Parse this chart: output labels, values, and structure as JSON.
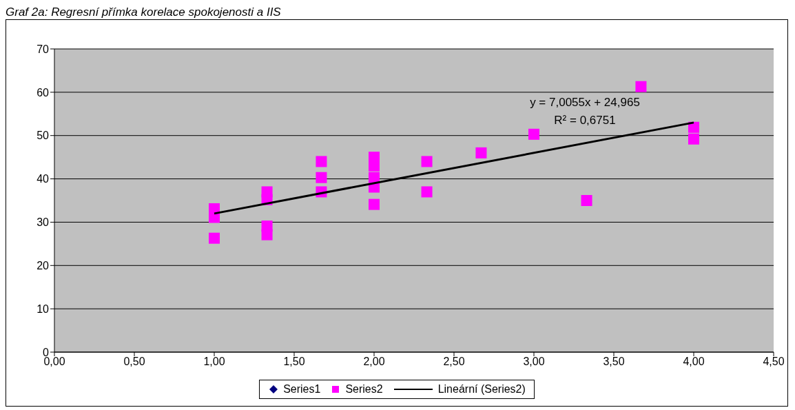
{
  "chart_data": {
    "type": "scatter",
    "title": "Graf 2a: Regresní přímka korelace spokojenosti a IIS",
    "x": [
      1,
      1,
      1,
      1.33,
      1.33,
      1.33,
      1.33,
      1.67,
      1.67,
      1.67,
      2,
      2,
      2,
      2,
      2,
      2.33,
      2.33,
      2.67,
      3,
      3.33,
      3.67,
      4,
      4
    ],
    "series": [
      {
        "name": "Series1",
        "color": "#000080",
        "marker": "diamond",
        "values": [
          null,
          null,
          null,
          null,
          null,
          null,
          null,
          null,
          null,
          null,
          null,
          null,
          null,
          null,
          null,
          null,
          null,
          null,
          null,
          null,
          null,
          null,
          null
        ]
      },
      {
        "name": "Series2",
        "color": "#ff00ff",
        "marker": "square",
        "values": [
          33.1,
          31.1,
          26.3,
          37,
          35.2,
          29.1,
          27.1,
          44,
          40.3,
          37,
          45,
          43,
          40.3,
          38.1,
          34.1,
          44,
          37,
          46,
          50.3,
          35,
          61.3,
          51.9,
          49.2
        ]
      },
      {
        "name": "Lineární (Series2)",
        "type": "line",
        "color": "#000000",
        "marker": "none",
        "x": [
          1,
          4
        ],
        "values": [
          32,
          53
        ]
      }
    ],
    "xlim": [
      0,
      4.5
    ],
    "xticks": [
      {
        "value": 0,
        "label": "0,00"
      },
      {
        "value": 0.5,
        "label": "0,50"
      },
      {
        "value": 1,
        "label": "1,00"
      },
      {
        "value": 1.5,
        "label": "1,50"
      },
      {
        "value": 2,
        "label": "2,00"
      },
      {
        "value": 2.5,
        "label": "2,50"
      },
      {
        "value": 3,
        "label": "3,00"
      },
      {
        "value": 3.5,
        "label": "3,50"
      },
      {
        "value": 4,
        "label": "4,00"
      },
      {
        "value": 4.5,
        "label": "4,50"
      }
    ],
    "ylim": [
      0,
      70
    ],
    "yticks": [
      0,
      10,
      20,
      30,
      40,
      50,
      60,
      70
    ],
    "grid": "y",
    "legend": "bottom",
    "annotations": [
      "y = 7,0055x + 24,965",
      "R² = 0,6751"
    ]
  }
}
